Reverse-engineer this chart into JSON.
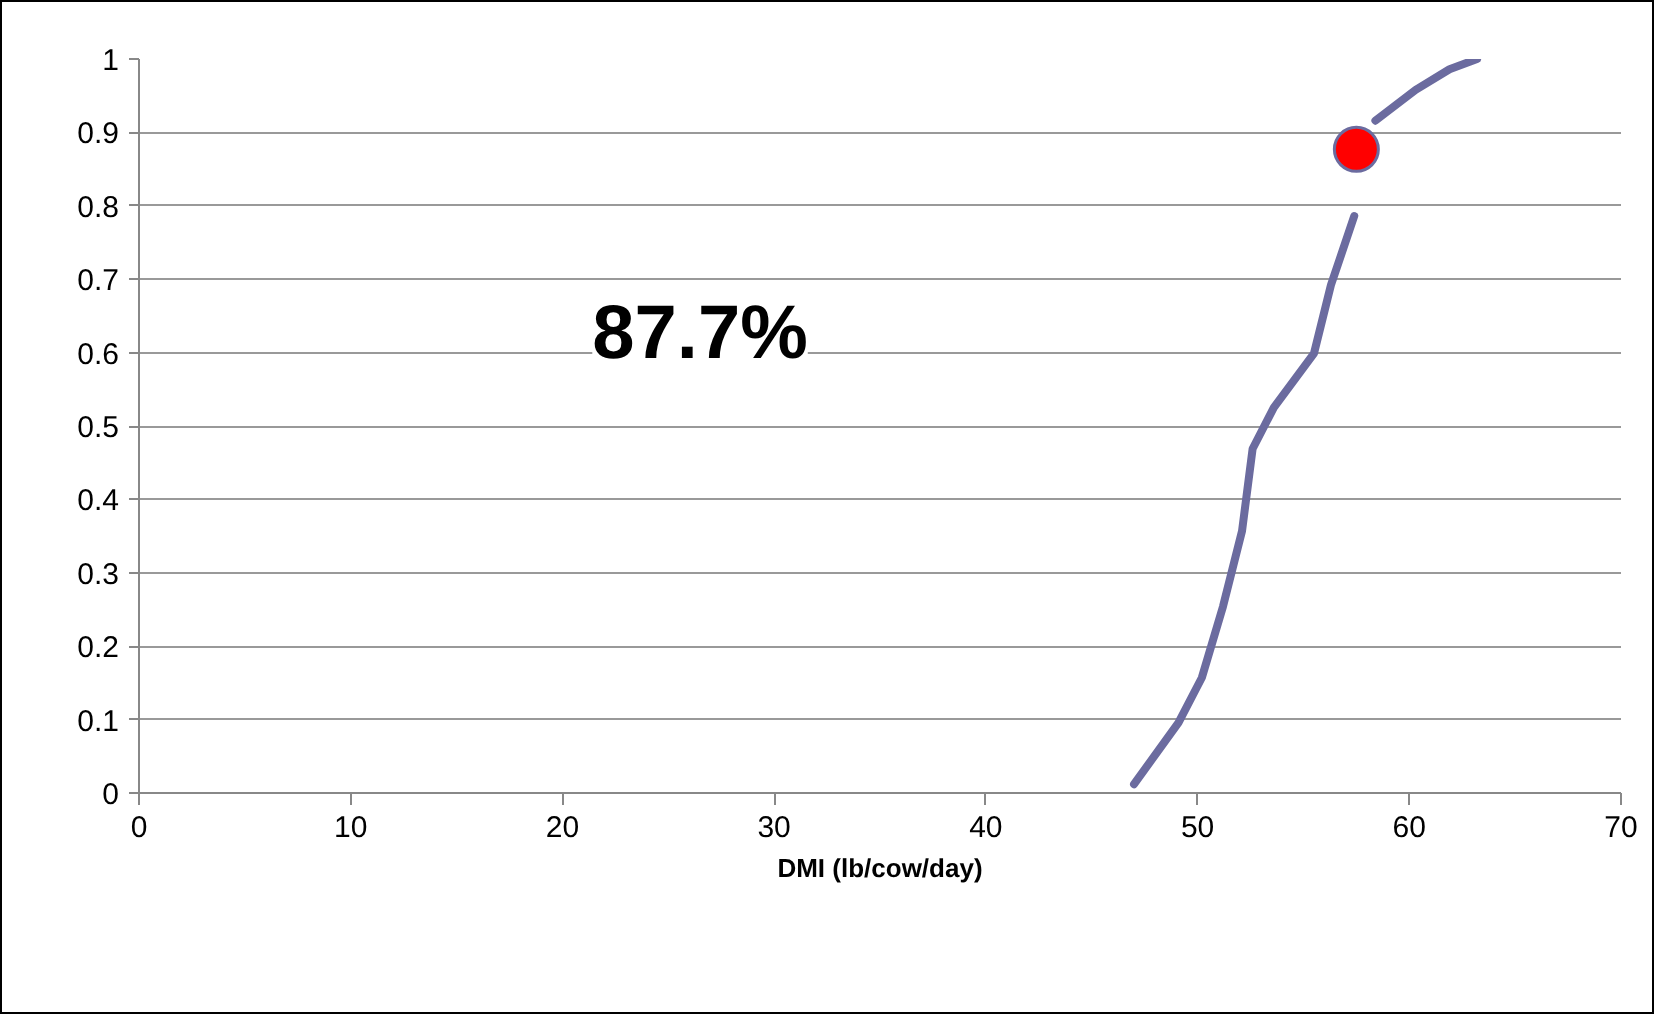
{
  "chart_data": {
    "type": "line",
    "xlabel": "DMI (lb/cow/day)",
    "xlim": [
      0,
      70
    ],
    "xticks": [
      0,
      10,
      20,
      30,
      40,
      50,
      60,
      70
    ],
    "ylim": [
      0,
      1
    ],
    "yticks": [
      0,
      0.1,
      0.2,
      0.3,
      0.4,
      0.5,
      0.6,
      0.7,
      0.8,
      0.9,
      1
    ],
    "grid": "y",
    "marker": "none",
    "line_style": "solid",
    "annotations": [
      "87.7%"
    ],
    "series": [
      {
        "color": "#6b6b9f",
        "x": [
          47.0,
          49.1,
          50.2,
          51.2,
          52.1,
          52.6,
          53.6,
          55.5,
          56.3,
          57.4,
          57.5,
          58.4,
          60.3,
          61.9,
          63.2
        ],
        "values": [
          0.012,
          0.096,
          0.157,
          0.254,
          0.357,
          0.469,
          0.525,
          0.599,
          0.692,
          0.786,
          null,
          0.916,
          0.958,
          0.986,
          1.0
        ]
      },
      {
        "type": "scatter",
        "marker": "circle",
        "color": "#ff0000",
        "x": [
          57.5
        ],
        "values": [
          0.877
        ]
      }
    ]
  }
}
